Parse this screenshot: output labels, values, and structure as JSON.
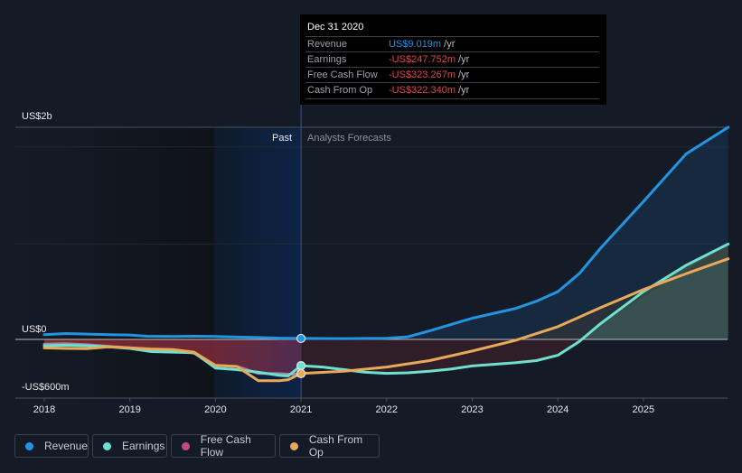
{
  "tooltip": {
    "date": "Dec 31 2020",
    "rows": [
      {
        "label": "Revenue",
        "value": "US$9.019m",
        "unit": " /yr",
        "color": "#2394df"
      },
      {
        "label": "Earnings",
        "value": "-US$247.752m",
        "unit": " /yr",
        "color": "#e64545"
      },
      {
        "label": "Free Cash Flow",
        "value": "-US$323.267m",
        "unit": " /yr",
        "color": "#e64545"
      },
      {
        "label": "Cash From Op",
        "value": "-US$322.340m",
        "unit": " /yr",
        "color": "#e64545"
      }
    ]
  },
  "regions": {
    "past": "Past",
    "forecast": "Analysts Forecasts"
  },
  "legend": [
    {
      "label": "Revenue",
      "color": "#2394df"
    },
    {
      "label": "Earnings",
      "color": "#6ee0d0"
    },
    {
      "label": "Free Cash Flow",
      "color": "#c04a85"
    },
    {
      "label": "Cash From Op",
      "color": "#e8a95a"
    }
  ],
  "chart_data": {
    "type": "line",
    "title": "",
    "xlabel": "",
    "ylabel": "",
    "ytick_labels": [
      "US$2b",
      "US$0",
      "-US$600m"
    ],
    "yticks": [
      2000,
      0,
      -600
    ],
    "xtick_labels": [
      "2018",
      "2019",
      "2020",
      "2021",
      "2022",
      "2023",
      "2024",
      "2025"
    ],
    "xlim": [
      2018.0,
      2025.99
    ],
    "ylim": [
      -600,
      2000
    ],
    "divider_x": 2021.0,
    "highlight_range": [
      2020.0,
      2021.0
    ],
    "legend_position": "bottom",
    "series": [
      {
        "name": "Revenue",
        "color": "#2394df",
        "fill": true,
        "points": [
          [
            2018.0,
            45
          ],
          [
            2018.25,
            55
          ],
          [
            2018.5,
            50
          ],
          [
            2018.75,
            45
          ],
          [
            2019.0,
            42
          ],
          [
            2019.2,
            30
          ],
          [
            2019.5,
            28
          ],
          [
            2019.75,
            30
          ],
          [
            2020.0,
            28
          ],
          [
            2020.25,
            22
          ],
          [
            2020.5,
            18
          ],
          [
            2020.75,
            12
          ],
          [
            2021.0,
            9
          ],
          [
            2021.5,
            8
          ],
          [
            2022.0,
            10
          ],
          [
            2022.25,
            25
          ],
          [
            2022.5,
            80
          ],
          [
            2022.75,
            140
          ],
          [
            2023.0,
            200
          ],
          [
            2023.5,
            290
          ],
          [
            2023.75,
            360
          ],
          [
            2024.0,
            450
          ],
          [
            2024.25,
            620
          ],
          [
            2024.5,
            860
          ],
          [
            2025.0,
            1300
          ],
          [
            2025.5,
            1750
          ],
          [
            2025.99,
            2000
          ]
        ]
      },
      {
        "name": "Earnings",
        "color": "#6ee0d0",
        "fill": true,
        "points": [
          [
            2018.0,
            -60
          ],
          [
            2018.25,
            -55
          ],
          [
            2018.5,
            -60
          ],
          [
            2018.75,
            -70
          ],
          [
            2019.0,
            -85
          ],
          [
            2019.25,
            -115
          ],
          [
            2019.5,
            -120
          ],
          [
            2019.75,
            -125
          ],
          [
            2020.0,
            -270
          ],
          [
            2020.25,
            -285
          ],
          [
            2020.5,
            -310
          ],
          [
            2020.75,
            -340
          ],
          [
            2020.85,
            -345
          ],
          [
            2021.0,
            -248
          ],
          [
            2021.25,
            -260
          ],
          [
            2021.5,
            -285
          ],
          [
            2021.75,
            -310
          ],
          [
            2022.0,
            -320
          ],
          [
            2022.25,
            -315
          ],
          [
            2022.5,
            -300
          ],
          [
            2022.75,
            -280
          ],
          [
            2023.0,
            -250
          ],
          [
            2023.25,
            -235
          ],
          [
            2023.5,
            -220
          ],
          [
            2023.75,
            -200
          ],
          [
            2024.0,
            -150
          ],
          [
            2024.25,
            -20
          ],
          [
            2024.5,
            150
          ],
          [
            2024.75,
            300
          ],
          [
            2025.0,
            450
          ],
          [
            2025.5,
            700
          ],
          [
            2025.99,
            900
          ]
        ]
      },
      {
        "name": "Free Cash Flow",
        "color": "#c04a85",
        "fill": true,
        "points": [
          [
            2018.0,
            -45
          ],
          [
            2018.25,
            -40
          ],
          [
            2018.5,
            -50
          ],
          [
            2018.75,
            -65
          ],
          [
            2019.0,
            -80
          ],
          [
            2019.25,
            -95
          ],
          [
            2019.5,
            -100
          ],
          [
            2019.75,
            -130
          ],
          [
            2020.0,
            -245
          ],
          [
            2020.25,
            -255
          ],
          [
            2020.5,
            -320
          ],
          [
            2020.75,
            -323
          ],
          [
            2020.9,
            -330
          ],
          [
            2021.0,
            -323
          ]
        ]
      },
      {
        "name": "Cash From Op",
        "color": "#e8a95a",
        "fill": false,
        "points": [
          [
            2018.0,
            -80
          ],
          [
            2018.25,
            -85
          ],
          [
            2018.5,
            -88
          ],
          [
            2018.75,
            -70
          ],
          [
            2019.0,
            -80
          ],
          [
            2019.25,
            -90
          ],
          [
            2019.5,
            -95
          ],
          [
            2019.75,
            -120
          ],
          [
            2020.0,
            -245
          ],
          [
            2020.25,
            -255
          ],
          [
            2020.5,
            -390
          ],
          [
            2020.75,
            -390
          ],
          [
            2020.85,
            -380
          ],
          [
            2021.0,
            -322
          ],
          [
            2021.5,
            -300
          ],
          [
            2022.0,
            -260
          ],
          [
            2022.5,
            -200
          ],
          [
            2023.0,
            -110
          ],
          [
            2023.5,
            -10
          ],
          [
            2024.0,
            120
          ],
          [
            2024.5,
            300
          ],
          [
            2025.0,
            470
          ],
          [
            2025.5,
            620
          ],
          [
            2025.99,
            760
          ]
        ]
      }
    ]
  }
}
